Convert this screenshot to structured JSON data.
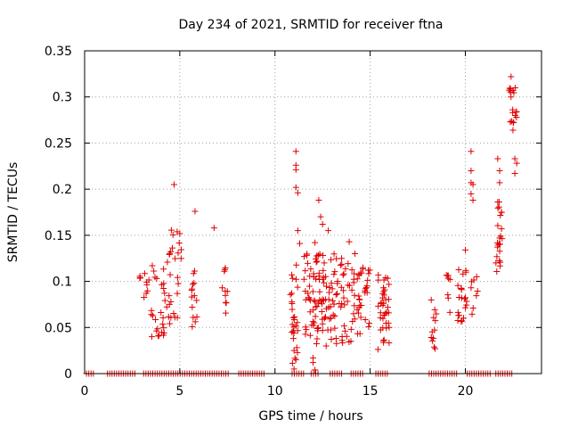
{
  "chart_data": {
    "type": "scatter",
    "title": "Day 234 of 2021, SRMTID for receiver ftna",
    "xlabel": "GPS time / hours",
    "ylabel": "SRMTID / TECUs",
    "xlim": [
      0,
      24
    ],
    "ylim": [
      0,
      0.35
    ],
    "x_ticks": [
      0,
      5,
      10,
      15,
      20
    ],
    "x_tick_labels": [
      "0",
      "5",
      "10",
      "15",
      "20"
    ],
    "y_ticks": [
      0,
      0.05,
      0.1,
      0.15,
      0.2,
      0.25,
      0.3,
      0.35
    ],
    "y_tick_labels": [
      "0",
      "0.05",
      "0.1",
      "0.15",
      "0.2",
      "0.25",
      "0.3",
      "0.35"
    ],
    "grid": true,
    "marker": "+",
    "color": "#e00000",
    "series": [
      {
        "name": "SRMTID",
        "clusters": [
          {
            "x_range": [
              2.9,
              3.4
            ],
            "y_range": [
              0.08,
              0.11
            ],
            "count": 10
          },
          {
            "x_range": [
              3.5,
              4.3
            ],
            "y_range": [
              0.04,
              0.12
            ],
            "count": 26
          },
          {
            "x_range": [
              4.3,
              5.1
            ],
            "y_range": [
              0.05,
              0.16
            ],
            "count": 28
          },
          {
            "x_range": [
              5.6,
              5.9
            ],
            "y_range": [
              0.035,
              0.12
            ],
            "count": 14
          },
          {
            "x_range": [
              7.2,
              7.5
            ],
            "y_range": [
              0.065,
              0.115
            ],
            "count": 10
          },
          {
            "x_range": [
              10.8,
              11.2
            ],
            "y_range": [
              0.01,
              0.12
            ],
            "count": 26
          },
          {
            "x_range": [
              11.5,
              12.3
            ],
            "y_range": [
              0.03,
              0.13
            ],
            "count": 45
          },
          {
            "x_range": [
              12.3,
              13.3
            ],
            "y_range": [
              0.03,
              0.13
            ],
            "count": 55
          },
          {
            "x_range": [
              13.3,
              14.2
            ],
            "y_range": [
              0.03,
              0.12
            ],
            "count": 35
          },
          {
            "x_range": [
              14.3,
              15.0
            ],
            "y_range": [
              0.035,
              0.115
            ],
            "count": 30
          },
          {
            "x_range": [
              15.4,
              16.0
            ],
            "y_range": [
              0.025,
              0.12
            ],
            "count": 38
          },
          {
            "x_range": [
              18.2,
              18.5
            ],
            "y_range": [
              0.025,
              0.08
            ],
            "count": 12
          },
          {
            "x_range": [
              19.0,
              19.2
            ],
            "y_range": [
              0.06,
              0.11
            ],
            "count": 8
          },
          {
            "x_range": [
              19.6,
              20.1
            ],
            "y_range": [
              0.05,
              0.13
            ],
            "count": 22
          },
          {
            "x_range": [
              20.3,
              20.7
            ],
            "y_range": [
              0.06,
              0.105
            ],
            "count": 8
          },
          {
            "x_range": [
              21.6,
              22.0
            ],
            "y_range": [
              0.11,
              0.19
            ],
            "count": 20
          },
          {
            "x_range": [
              22.3,
              22.7
            ],
            "y_range": [
              0.27,
              0.31
            ],
            "count": 18
          }
        ],
        "points": [
          [
            4.7,
            0.205
          ],
          [
            5.8,
            0.176
          ],
          [
            6.8,
            0.158
          ],
          [
            11.1,
            0.241
          ],
          [
            11.1,
            0.226
          ],
          [
            11.1,
            0.221
          ],
          [
            11.1,
            0.202
          ],
          [
            11.2,
            0.196
          ],
          [
            11.2,
            0.155
          ],
          [
            11.3,
            0.141
          ],
          [
            12.3,
            0.188
          ],
          [
            12.4,
            0.17
          ],
          [
            12.5,
            0.162
          ],
          [
            12.1,
            0.142
          ],
          [
            12.8,
            0.155
          ],
          [
            13.5,
            0.125
          ],
          [
            13.9,
            0.143
          ],
          [
            14.2,
            0.13
          ],
          [
            14.9,
            0.112
          ],
          [
            20.0,
            0.134
          ],
          [
            20.3,
            0.241
          ],
          [
            20.3,
            0.22
          ],
          [
            20.3,
            0.207
          ],
          [
            20.4,
            0.205
          ],
          [
            20.3,
            0.195
          ],
          [
            20.4,
            0.188
          ],
          [
            21.7,
            0.233
          ],
          [
            21.8,
            0.22
          ],
          [
            21.8,
            0.207
          ],
          [
            21.7,
            0.186
          ],
          [
            21.9,
            0.175
          ],
          [
            22.4,
            0.322
          ],
          [
            22.4,
            0.3
          ],
          [
            22.5,
            0.264
          ],
          [
            22.6,
            0.233
          ],
          [
            22.7,
            0.228
          ],
          [
            22.6,
            0.217
          ],
          [
            21.9,
            0.157
          ],
          [
            21.8,
            0.147
          ],
          [
            12.0,
            0.017
          ],
          [
            12.0,
            0.012
          ],
          [
            12.1,
            0.004
          ],
          [
            11.0,
            0.025
          ],
          [
            11.1,
            0.015
          ],
          [
            11.0,
            0.005
          ]
        ],
        "zero_band_x_ranges": [
          [
            0.1,
            0.5
          ],
          [
            1.2,
            2.7
          ],
          [
            3.1,
            7.6
          ],
          [
            8.1,
            9.5
          ],
          [
            10.9,
            11.5
          ],
          [
            11.9,
            12.3
          ],
          [
            12.9,
            13.6
          ],
          [
            14.0,
            14.6
          ],
          [
            15.3,
            16.0
          ],
          [
            18.1,
            19.6
          ],
          [
            20.1,
            21.4
          ],
          [
            21.6,
            22.5
          ]
        ]
      }
    ]
  }
}
